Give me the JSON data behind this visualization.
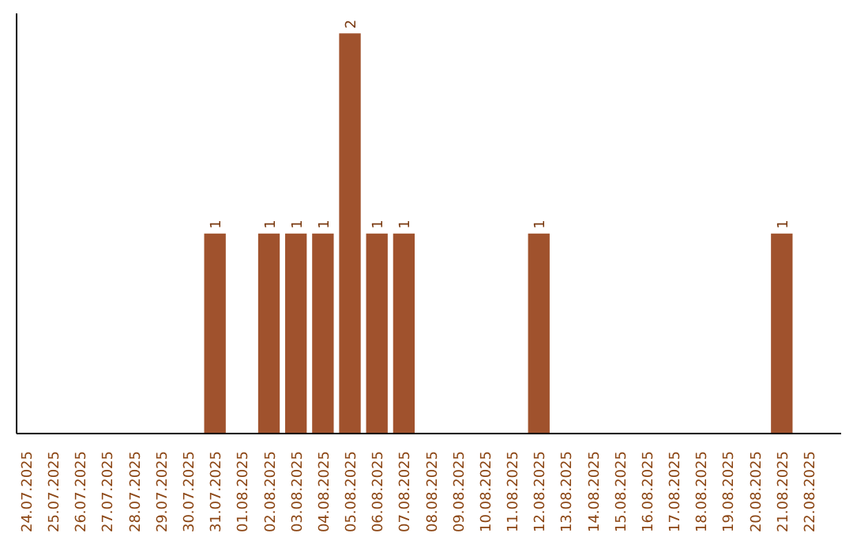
{
  "chart_data": {
    "type": "bar",
    "categories": [
      "24.07.2025",
      "25.07.2025",
      "26.07.2025",
      "27.07.2025",
      "28.07.2025",
      "29.07.2025",
      "30.07.2025",
      "31.07.2025",
      "01.08.2025",
      "02.08.2025",
      "03.08.2025",
      "04.08.2025",
      "05.08.2025",
      "06.08.2025",
      "07.08.2025",
      "08.08.2025",
      "09.08.2025",
      "10.08.2025",
      "11.08.2025",
      "12.08.2025",
      "13.08.2025",
      "14.08.2025",
      "15.08.2025",
      "16.08.2025",
      "17.08.2025",
      "18.08.2025",
      "19.08.2025",
      "20.08.2025",
      "21.08.2025",
      "22.08.2025"
    ],
    "values": [
      0,
      0,
      0,
      0,
      0,
      0,
      0,
      1,
      0,
      1,
      1,
      1,
      2,
      1,
      1,
      0,
      0,
      0,
      0,
      1,
      0,
      0,
      0,
      0,
      0,
      0,
      0,
      0,
      1,
      0
    ],
    "value_labels": [
      null,
      null,
      null,
      null,
      null,
      null,
      null,
      "1",
      null,
      "1",
      "1",
      "1",
      "2",
      "1",
      "1",
      null,
      null,
      null,
      null,
      "1",
      null,
      null,
      null,
      null,
      null,
      null,
      null,
      null,
      "1",
      null
    ],
    "color": "#a0522d",
    "grid": false
  }
}
